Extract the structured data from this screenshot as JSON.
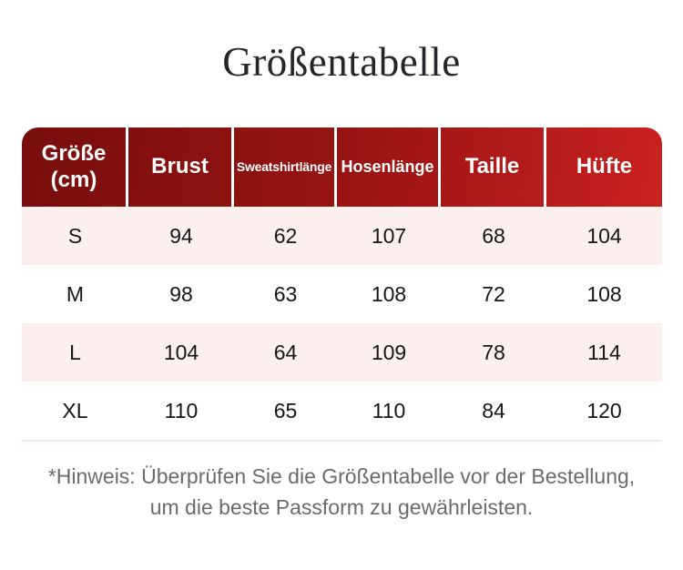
{
  "title": "Größentabelle",
  "chart_data": {
    "type": "table",
    "title": "Größentabelle",
    "unit": "cm",
    "columns": [
      "Größe (cm)",
      "Brust",
      "Sweatshirtlänge",
      "Hosenlänge",
      "Taille",
      "Hüfte"
    ],
    "rows": [
      [
        "S",
        94,
        62,
        107,
        68,
        104
      ],
      [
        "M",
        98,
        63,
        108,
        72,
        108
      ],
      [
        "L",
        104,
        64,
        109,
        78,
        114
      ],
      [
        "XL",
        110,
        65,
        110,
        84,
        120
      ]
    ],
    "note": "*Hinweis: Überprüfen Sie die Größentabelle vor der Bestellung, um die beste Passform zu gewährleisten."
  },
  "note": {
    "line1": "*Hinweis: Überprüfen Sie die Größentabelle vor der Bestellung,",
    "line2": "um die beste Passform zu gewährleisten."
  },
  "colors": {
    "header_gradient_start": "#780e0e",
    "header_gradient_end": "#c92120",
    "header_text": "#ffffff",
    "row_alt_background": "#fcf0ef",
    "title_text": "#26262a",
    "body_text": "#161616",
    "note_text": "#6b6b6b"
  }
}
